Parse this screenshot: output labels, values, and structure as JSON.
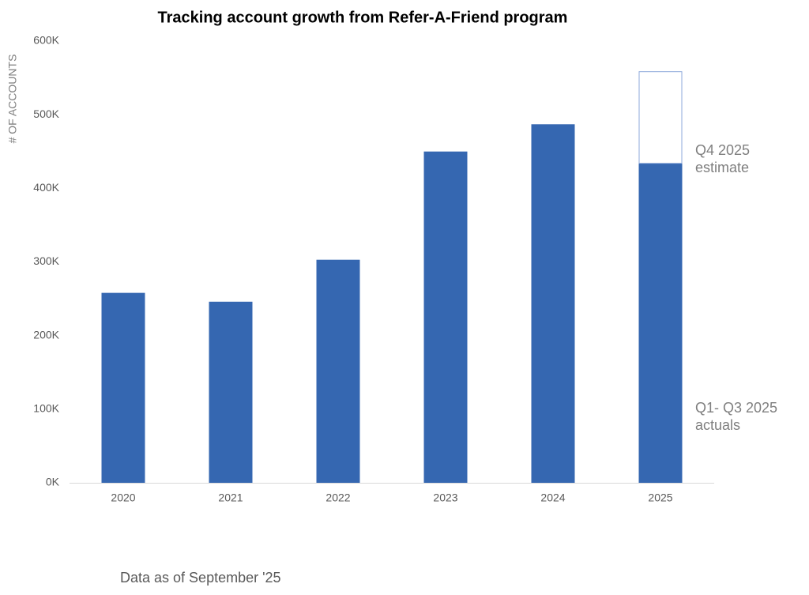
{
  "chart_data": {
    "type": "bar",
    "stacked": true,
    "title": "Tracking account growth from Refer-A-Friend program",
    "y_label": "# OF ACCOUNTS",
    "footnote": "Data as of September '25",
    "categories": [
      "2020",
      "2021",
      "2022",
      "2023",
      "2024",
      "2025"
    ],
    "series": [
      {
        "name": "Q1- Q3 2025 actuals",
        "color": "#3567b1",
        "values": [
          258000,
          246000,
          303000,
          450000,
          487000,
          434000
        ]
      },
      {
        "name": "Q4 2025 estimate",
        "color": "#ffffff",
        "outline": "#8eaadb",
        "values": [
          null,
          null,
          null,
          null,
          null,
          125000
        ]
      }
    ],
    "ylim": [
      0,
      600000
    ],
    "yticks": [
      {
        "value": 0,
        "label": "0K"
      },
      {
        "value": 100000,
        "label": "100K"
      },
      {
        "value": 200000,
        "label": "200K"
      },
      {
        "value": 300000,
        "label": "300K"
      },
      {
        "value": 400000,
        "label": "400K"
      },
      {
        "value": 500000,
        "label": "500K"
      },
      {
        "value": 600000,
        "label": "600K"
      }
    ],
    "grid": false
  }
}
